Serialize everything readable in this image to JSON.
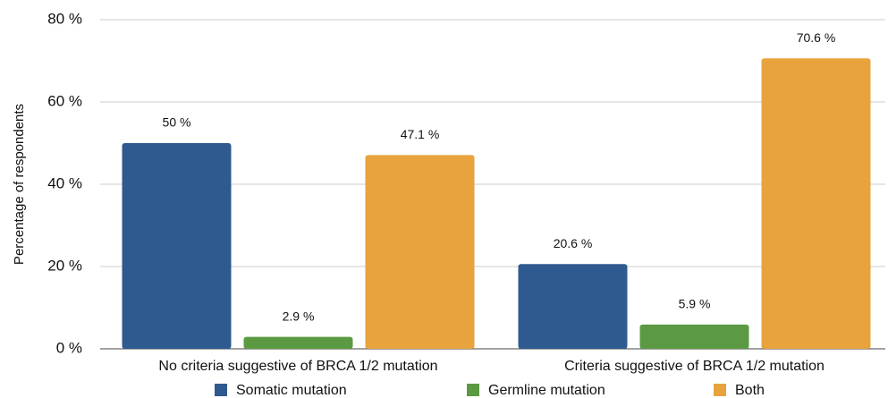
{
  "chart_data": {
    "type": "bar",
    "y_label": "Percentage of respondents",
    "categories": [
      "No criteria suggestive of BRCA 1/2 mutation",
      "Criteria suggestive of BRCA 1/2 mutation"
    ],
    "series": [
      {
        "name": "Somatic mutation",
        "color": "#2f5a8f",
        "values": [
          50,
          20.6
        ],
        "value_labels": [
          "50 %",
          "20.6 %"
        ]
      },
      {
        "name": "Germline mutation",
        "color": "#5b9a42",
        "values": [
          2.9,
          5.9
        ],
        "value_labels": [
          "2.9 %",
          "5.9 %"
        ]
      },
      {
        "name": "Both",
        "color": "#e8a33d",
        "values": [
          47.1,
          70.6
        ],
        "value_labels": [
          "47.1 %",
          "70.6 %"
        ]
      }
    ],
    "ylim": [
      0,
      80
    ],
    "yticks": [
      {
        "value": 0,
        "label": "0 %"
      },
      {
        "value": 20,
        "label": "20 %"
      },
      {
        "value": 40,
        "label": "40 %"
      },
      {
        "value": 60,
        "label": "60 %"
      },
      {
        "value": 80,
        "label": "80 %"
      }
    ],
    "grid": true,
    "legend": "bottom"
  }
}
